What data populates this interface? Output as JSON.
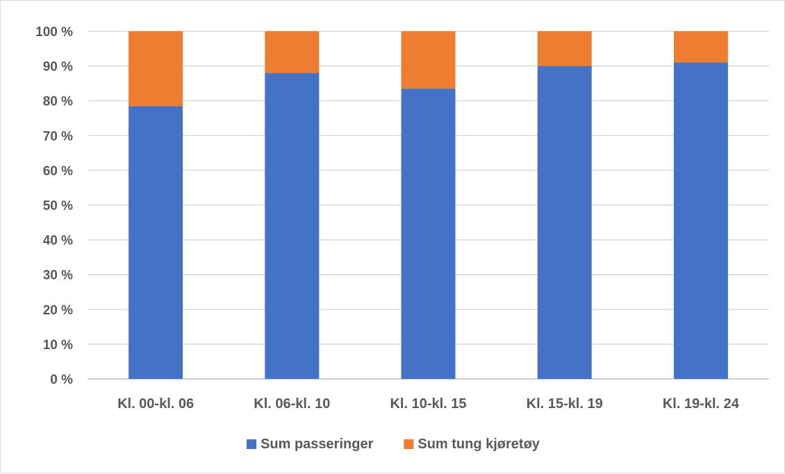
{
  "chart_data": {
    "type": "bar",
    "stacked": true,
    "percent_stacked": true,
    "title": "",
    "xlabel": "",
    "ylabel": "",
    "ylim": [
      0,
      100
    ],
    "y_ticks": [
      "0 %",
      "10 %",
      "20 %",
      "30 %",
      "40 %",
      "50 %",
      "60 %",
      "70 %",
      "80 %",
      "90 %",
      "100 %"
    ],
    "grid": true,
    "legend_position": "bottom",
    "categories": [
      "Kl. 00-kl. 06",
      "Kl. 06-kl. 10",
      "Kl. 10-kl. 15",
      "Kl. 15-kl. 19",
      "Kl. 19-kl. 24"
    ],
    "series": [
      {
        "name": "Sum passeringer",
        "color": "#4472C4",
        "values": [
          78.5,
          88,
          83.5,
          90,
          91
        ]
      },
      {
        "name": "Sum tung kjøretøy",
        "color": "#ED7D31",
        "values": [
          21.5,
          12,
          16.5,
          10,
          9
        ]
      }
    ]
  }
}
